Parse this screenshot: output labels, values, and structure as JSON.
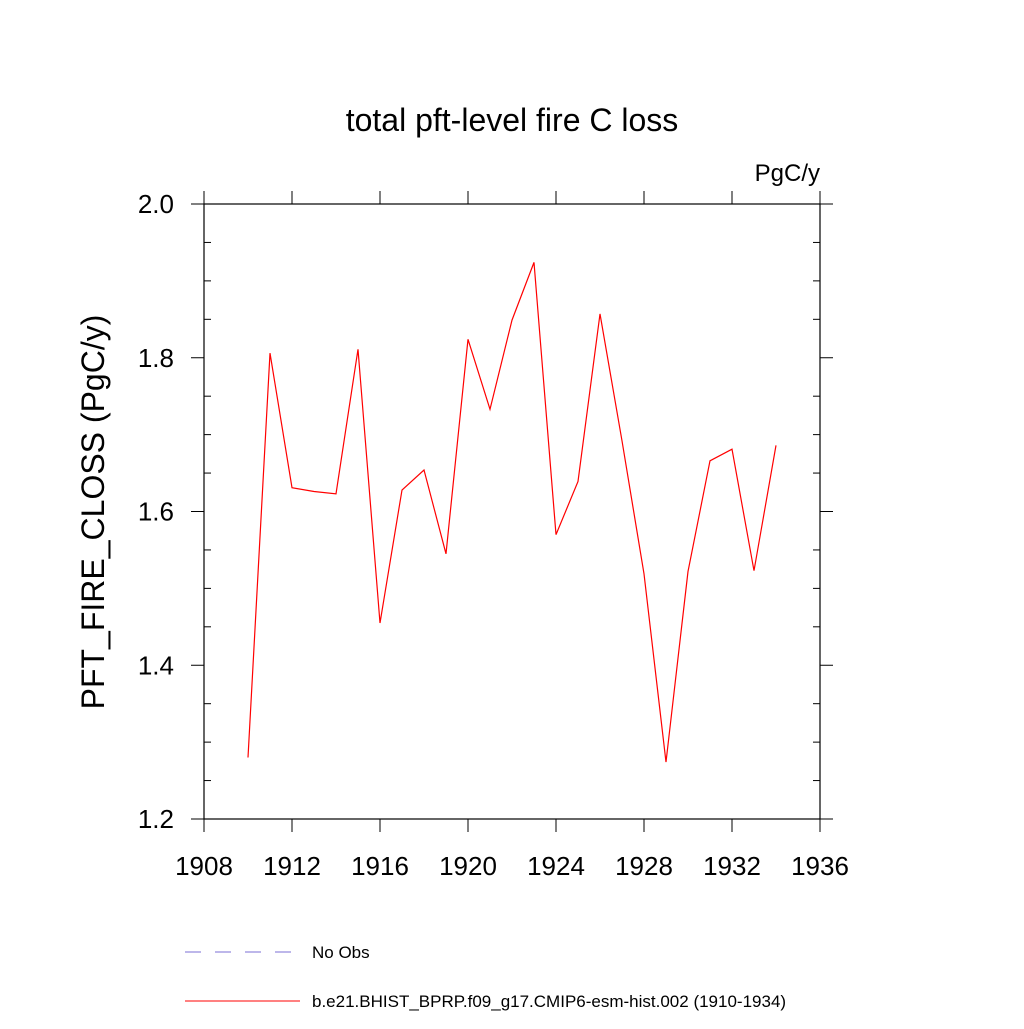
{
  "chart_data": {
    "type": "line",
    "title": "total pft-level fire C loss",
    "units_label": "PgC/y",
    "xlabel": "",
    "ylabel": "PFT_FIRE_CLOSS  (PgC/y)",
    "xlim": [
      1908,
      1936
    ],
    "ylim": [
      1.2,
      2.0
    ],
    "x_ticks": [
      "1908",
      "1912",
      "1916",
      "1920",
      "1924",
      "1928",
      "1932",
      "1936"
    ],
    "y_ticks": [
      "1.2",
      "1.4",
      "1.6",
      "1.8",
      "2.0"
    ],
    "grid": false,
    "legend_position": "bottom",
    "series": [
      {
        "name": "b.e21.BHIST_BPRP.f09_g17.CMIP6-esm-hist.002 (1910-1934)",
        "color": "#ff0000",
        "style": "solid",
        "x": [
          1910,
          1911,
          1912,
          1913,
          1914,
          1915,
          1916,
          1917,
          1918,
          1919,
          1920,
          1921,
          1922,
          1923,
          1924,
          1925,
          1926,
          1927,
          1928,
          1929,
          1930,
          1931,
          1932,
          1933,
          1934
        ],
        "y": [
          1.28,
          1.806,
          1.631,
          1.626,
          1.623,
          1.811,
          1.455,
          1.628,
          1.654,
          1.545,
          1.824,
          1.733,
          1.849,
          1.924,
          1.57,
          1.639,
          1.857,
          1.692,
          1.519,
          1.274,
          1.522,
          1.666,
          1.681,
          1.523,
          1.686
        ]
      }
    ],
    "legend": [
      {
        "label": "No Obs",
        "color": "#7b6fd6",
        "style": "dashed"
      },
      {
        "label": "b.e21.BHIST_BPRP.f09_g17.CMIP6-esm-hist.002 (1910-1934)",
        "color": "#ff0000",
        "style": "solid"
      }
    ]
  }
}
